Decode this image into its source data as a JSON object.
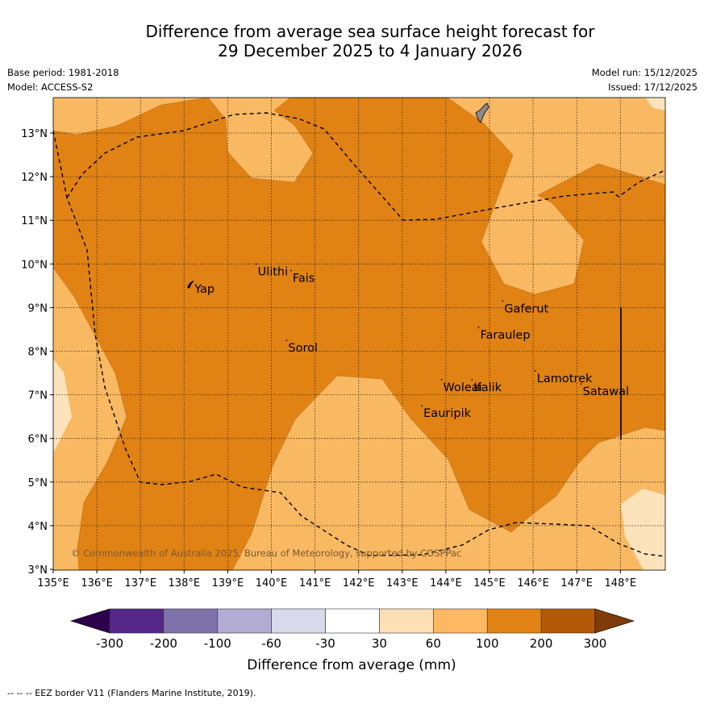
{
  "title_line1": "Difference from average sea surface height forecast for",
  "title_line2": "29 December 2025 to 4 January 2026",
  "meta_left": {
    "base_period": "Base period: 1981-2018",
    "model": "Model: ACCESS-S2"
  },
  "meta_right": {
    "model_run": "Model run: 15/12/2025",
    "issued": "Issued: 17/12/2025"
  },
  "colors": {
    "level_30_60": "#fde3bc",
    "level_60_100": "#f9b862",
    "level_100_200": "#e08214",
    "border": "#000000",
    "grid": "#3c2a10"
  },
  "map": {
    "lon_range": [
      135,
      149
    ],
    "lat_range": [
      3,
      13.8
    ],
    "lon_ticks": [
      "135°E",
      "136°E",
      "137°E",
      "138°E",
      "139°E",
      "140°E",
      "141°E",
      "142°E",
      "143°E",
      "144°E",
      "145°E",
      "146°E",
      "147°E",
      "148°E"
    ],
    "lat_ticks": [
      "3°N",
      "4°N",
      "5°N",
      "6°N",
      "7°N",
      "8°N",
      "9°N",
      "10°N",
      "11°N",
      "12°N",
      "13°N"
    ],
    "copyright": "© Commonwealth of Australia 2025, Bureau of Meteorology, supported by COSPPac",
    "places": [
      {
        "name": "Ulithi",
        "lon": 139.65,
        "lat": 9.85
      },
      {
        "name": "Fais",
        "lon": 140.45,
        "lat": 9.7
      },
      {
        "name": "Yap",
        "lon": 138.2,
        "lat": 9.45
      },
      {
        "name": "Gaferut",
        "lon": 145.3,
        "lat": 9.0
      },
      {
        "name": "Faraulep",
        "lon": 144.75,
        "lat": 8.4
      },
      {
        "name": "Sorol",
        "lon": 140.35,
        "lat": 8.1
      },
      {
        "name": "Lamotrek",
        "lon": 146.05,
        "lat": 7.4
      },
      {
        "name": "Woleai",
        "lon": 143.9,
        "lat": 7.2
      },
      {
        "name": "Ifalik",
        "lon": 144.6,
        "lat": 7.2
      },
      {
        "name": "Satawal",
        "lon": 147.1,
        "lat": 7.1
      },
      {
        "name": "Eauripik",
        "lon": 143.45,
        "lat": 6.6
      }
    ]
  },
  "colorbar": {
    "ticks": [
      "-300",
      "-200",
      "-100",
      "-60",
      "-30",
      "30",
      "60",
      "100",
      "200",
      "300"
    ],
    "colors": [
      "#542788",
      "#8073ac",
      "#b2abd2",
      "#d8daeb",
      "#ffffff",
      "#fee0b6",
      "#fdb863",
      "#e08214",
      "#b35806"
    ],
    "under_color": "#2d004b",
    "over_color": "#7f3b08",
    "label": "Difference from average (mm)"
  },
  "footnote": "-- -- -- EEZ border V11 (Flanders Marine Institute, 2019)."
}
